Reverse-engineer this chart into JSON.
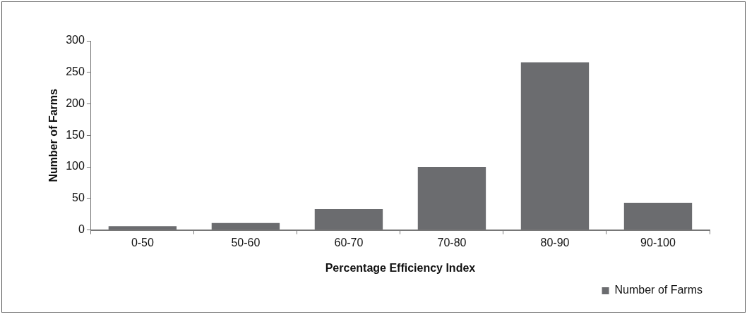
{
  "chart_data": {
    "type": "bar",
    "xlabel": "Percentage Efficiency Index",
    "ylabel": "Number of Farms",
    "categories": [
      "0-50",
      "50-60",
      "60-70",
      "70-80",
      "80-90",
      "90-100"
    ],
    "series": [
      {
        "name": "Number of Farms",
        "color": "#6b6c6f",
        "values": [
          6,
          11,
          33,
          100,
          266,
          43
        ]
      }
    ],
    "ylim": [
      0,
      300
    ],
    "yticks": [
      0,
      50,
      100,
      150,
      200,
      250,
      300
    ],
    "grid": false,
    "legend": "bottom right"
  }
}
